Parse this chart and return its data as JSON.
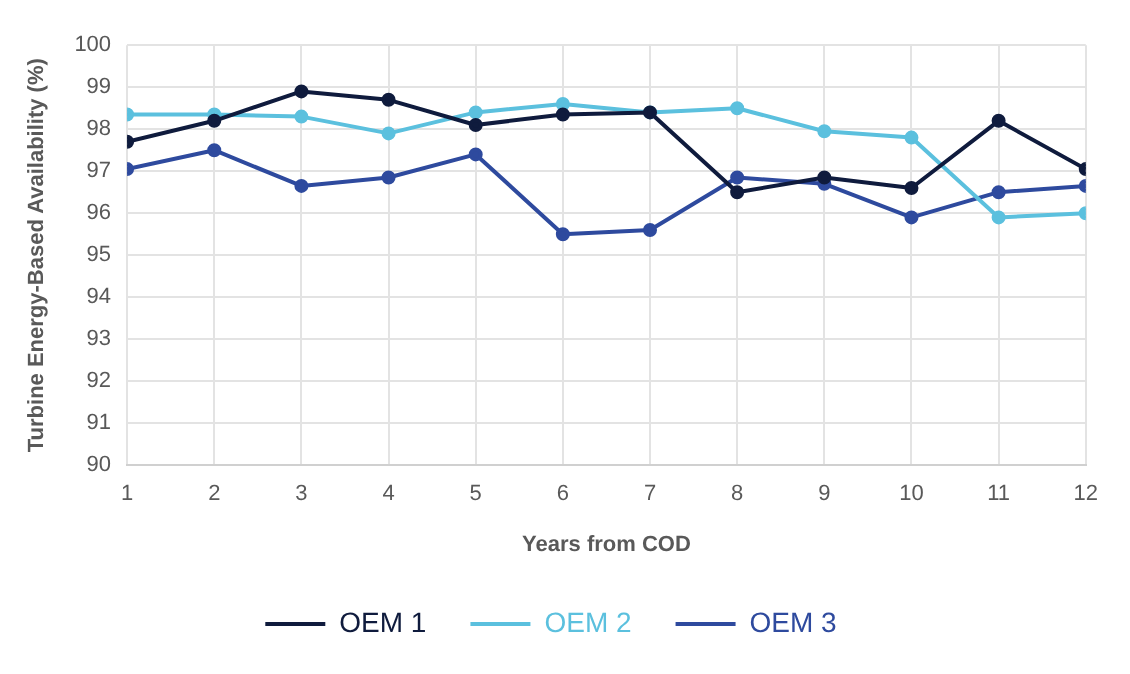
{
  "chart_data": {
    "type": "line",
    "xlabel": "Years from COD",
    "ylabel": "Turbine Energy-Based Availability (%)",
    "x": [
      1,
      2,
      3,
      4,
      5,
      6,
      7,
      8,
      9,
      10,
      11,
      12
    ],
    "xlim": [
      1,
      12
    ],
    "xticks": [
      1,
      2,
      3,
      4,
      5,
      6,
      7,
      8,
      9,
      10,
      11,
      12
    ],
    "series": [
      {
        "name": "OEM 1",
        "color": "#0f1b3d",
        "values": [
          97.7,
          98.2,
          98.9,
          98.7,
          98.1,
          98.35,
          98.4,
          96.5,
          96.85,
          96.6,
          98.2,
          97.05
        ]
      },
      {
        "name": "OEM 2",
        "color": "#5bc0de",
        "values": [
          98.35,
          98.35,
          98.3,
          97.9,
          98.4,
          98.6,
          98.4,
          98.5,
          97.95,
          97.8,
          95.9,
          96.0
        ]
      },
      {
        "name": "OEM 3",
        "color": "#2e4a9e",
        "values": [
          97.05,
          97.5,
          96.65,
          96.85,
          97.4,
          95.5,
          95.6,
          96.85,
          96.7,
          95.9,
          96.5,
          96.65
        ]
      }
    ],
    "ylim": [
      90,
      100
    ],
    "yticks": [
      90,
      91,
      92,
      93,
      94,
      95,
      96,
      97,
      98,
      99,
      100
    ],
    "grid": true,
    "legend": "bottom",
    "marker": "circle",
    "line_style": "solid"
  }
}
